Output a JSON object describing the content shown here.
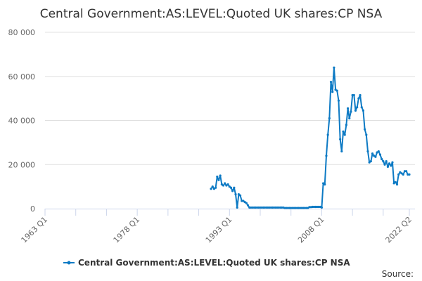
{
  "chart_data": {
    "type": "line",
    "title": "Central Government:AS:LEVEL:Quoted UK shares:CP NSA",
    "xlabel": "",
    "ylabel": "",
    "x_tick_labels": [
      "1963 Q1",
      "1978 Q1",
      "1993 Q1",
      "2008 Q1",
      "2022 Q2"
    ],
    "y_tick_labels": [
      "0",
      "20 000",
      "40 000",
      "60 000",
      "80 000"
    ],
    "y_ticks": [
      0,
      20000,
      40000,
      60000,
      80000
    ],
    "xlim": [
      "1963 Q1",
      "2022 Q2"
    ],
    "ylim": [
      0,
      80000
    ],
    "grid": "horizontal",
    "legend_position": "bottom",
    "source_label": "Source:",
    "color": "#0d7ac4",
    "series": [
      {
        "name": "Central Government:AS:LEVEL:Quoted UK shares:CP NSA",
        "start": "1990 Q1",
        "frequency": "quarterly",
        "values": [
          9000,
          10000,
          9000,
          9500,
          14500,
          13000,
          15000,
          11000,
          10500,
          11500,
          10500,
          11000,
          10000,
          9500,
          8000,
          9500,
          6500,
          500,
          6500,
          6000,
          3500,
          3500,
          3000,
          2500,
          1500,
          500,
          500,
          500,
          500,
          500,
          500,
          500,
          500,
          500,
          500,
          500,
          500,
          500,
          500,
          500,
          500,
          500,
          500,
          500,
          500,
          500,
          500,
          500,
          300,
          300,
          300,
          300,
          300,
          300,
          300,
          300,
          300,
          300,
          300,
          300,
          300,
          300,
          300,
          300,
          700,
          700,
          800,
          800,
          800,
          800,
          800,
          800,
          500,
          11500,
          11000,
          24000,
          33500,
          41000,
          57500,
          53000,
          64000,
          54000,
          53500,
          49000,
          31500,
          26000,
          35000,
          33500,
          38000,
          45500,
          41000,
          44000,
          51500,
          51500,
          44500,
          46000,
          50000,
          51500,
          46000,
          44500,
          36000,
          33500,
          26000,
          21000,
          21500,
          25000,
          24000,
          23500,
          25500,
          26000,
          24500,
          22500,
          21500,
          20000,
          21500,
          19000,
          20500,
          19500,
          21000,
          11500,
          12000,
          11000,
          15500,
          16500,
          16000,
          15500,
          17000,
          17000,
          15500,
          15500
        ]
      }
    ]
  }
}
